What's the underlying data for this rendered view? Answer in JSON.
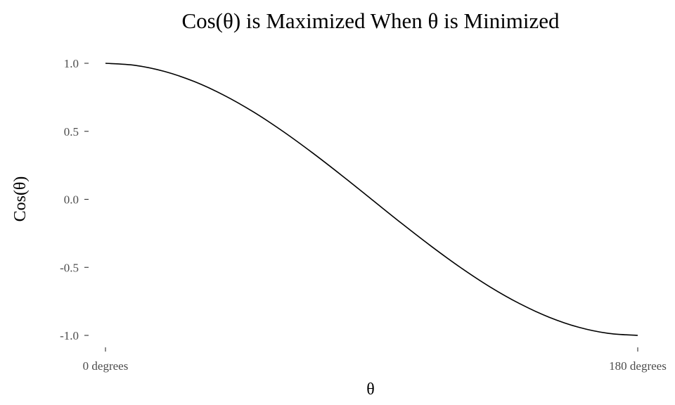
{
  "chart_data": {
    "type": "line",
    "title": "Cos(θ) is Maximized When θ is Minimized",
    "xlabel": "θ",
    "ylabel": "Cos(θ)",
    "xlim": [
      0,
      180
    ],
    "ylim": [
      -1.0,
      1.0
    ],
    "x_ticks": [
      {
        "value": 0,
        "label": "0 degrees"
      },
      {
        "value": 180,
        "label": "180 degrees"
      }
    ],
    "y_ticks": [
      {
        "value": 1.0,
        "label": "1.0"
      },
      {
        "value": 0.5,
        "label": "0.5"
      },
      {
        "value": 0.0,
        "label": "0.0"
      },
      {
        "value": -0.5,
        "label": "-0.5"
      },
      {
        "value": -1.0,
        "label": "-1.0"
      }
    ],
    "grid": false,
    "legend": "none",
    "line_color": "#000000",
    "series": [
      {
        "x": [
          0,
          10,
          20,
          30,
          40,
          50,
          60,
          70,
          80,
          90,
          100,
          110,
          120,
          130,
          140,
          150,
          160,
          170,
          180
        ],
        "values": [
          1.0,
          0.985,
          0.94,
          0.866,
          0.766,
          0.643,
          0.5,
          0.342,
          0.174,
          0.0,
          -0.174,
          -0.342,
          -0.5,
          -0.643,
          -0.766,
          -0.866,
          -0.94,
          -0.985,
          -1.0
        ]
      }
    ]
  }
}
